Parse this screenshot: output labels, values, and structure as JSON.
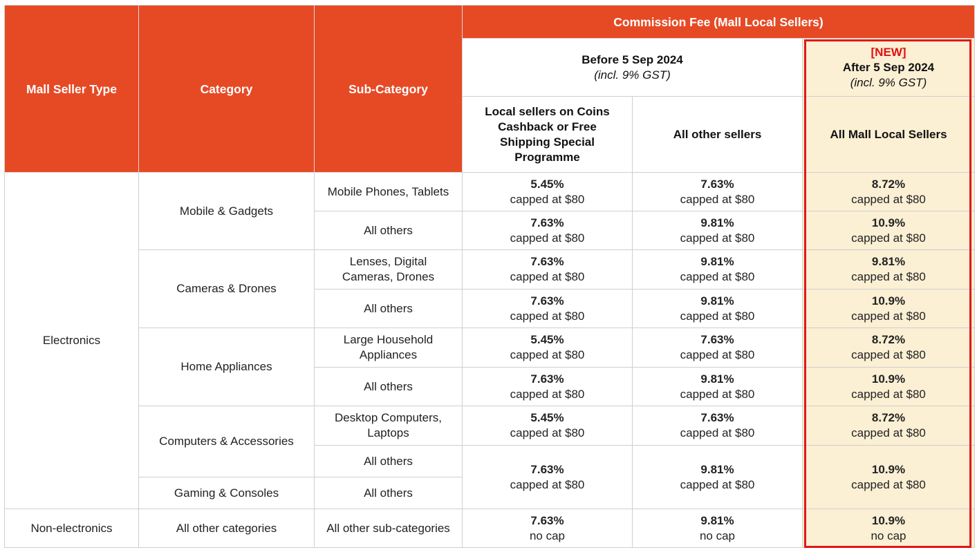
{
  "header": {
    "seller_type": "Mall Seller Type",
    "category": "Category",
    "sub_category": "Sub-Category",
    "commission_fee": "Commission Fee (Mall Local Sellers)",
    "before_title": "Before 5 Sep 2024",
    "before_note": "(incl. 9% GST)",
    "new_tag": "[NEW]",
    "after_title": "After 5 Sep 2024",
    "after_note": "(incl. 9% GST)",
    "col_coins": "Local sellers on Coins Cashback or Free Shipping Special Programme",
    "col_other": "All other sellers",
    "col_all_mall": "All Mall Local Sellers"
  },
  "groups": {
    "electronics": "Electronics",
    "non_electronics": "Non-electronics"
  },
  "categories": {
    "mobile": "Mobile & Gadgets",
    "cameras": "Cameras & Drones",
    "home": "Home Appliances",
    "computers": "Computers & Accessories",
    "gaming": "Gaming & Consoles",
    "all_other": "All other categories"
  },
  "rows": [
    {
      "sub": "Mobile Phones, Tablets",
      "coins": "5.45%",
      "coins_cap": "capped at $80",
      "other": "7.63%",
      "other_cap": "capped at $80",
      "after": "8.72%",
      "after_cap": "capped at $80"
    },
    {
      "sub": "All others",
      "coins": "7.63%",
      "coins_cap": "capped at $80",
      "other": "9.81%",
      "other_cap": "capped at $80",
      "after": "10.9%",
      "after_cap": "capped at $80"
    },
    {
      "sub": "Lenses, Digital Cameras, Drones",
      "coins": "7.63%",
      "coins_cap": "capped at $80",
      "other": "9.81%",
      "other_cap": "capped at $80",
      "after": "9.81%",
      "after_cap": "capped at $80"
    },
    {
      "sub": "All others",
      "coins": "7.63%",
      "coins_cap": "capped at $80",
      "other": "9.81%",
      "other_cap": "capped at $80",
      "after": "10.9%",
      "after_cap": "capped at $80"
    },
    {
      "sub": "Large Household Appliances",
      "coins": "5.45%",
      "coins_cap": "capped at $80",
      "other": "7.63%",
      "other_cap": "capped at $80",
      "after": "8.72%",
      "after_cap": "capped at $80"
    },
    {
      "sub": "All others",
      "coins": "7.63%",
      "coins_cap": "capped at $80",
      "other": "9.81%",
      "other_cap": "capped at $80",
      "after": "10.9%",
      "after_cap": "capped at $80"
    },
    {
      "sub": "Desktop Computers, Laptops",
      "coins": "5.45%",
      "coins_cap": "capped at $80",
      "other": "7.63%",
      "other_cap": "capped at $80",
      "after": "8.72%",
      "after_cap": "capped at $80"
    },
    {
      "sub": "All others",
      "coins": "7.63%",
      "coins_cap": "capped at $80",
      "other": "9.81%",
      "other_cap": "capped at $80",
      "after": "10.9%",
      "after_cap": "capped at $80"
    },
    {
      "sub": "All others"
    },
    {
      "sub": "All other sub-categories",
      "coins": "7.63%",
      "coins_cap": "no cap",
      "other": "9.81%",
      "other_cap": "no cap",
      "after": "10.9%",
      "after_cap": "no cap"
    }
  ]
}
